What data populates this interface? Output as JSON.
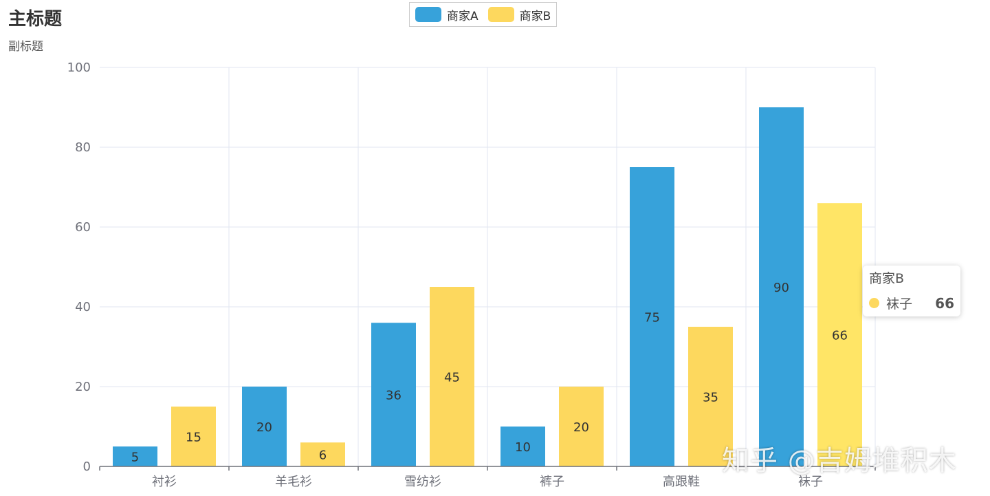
{
  "chart_data": {
    "type": "bar",
    "title": "主标题",
    "subtitle": "副标题",
    "categories": [
      "衬衫",
      "羊毛衫",
      "雪纺衫",
      "裤子",
      "高跟鞋",
      "袜子"
    ],
    "series": [
      {
        "name": "商家A",
        "values": [
          5,
          20,
          36,
          10,
          75,
          90
        ],
        "color": "#37a2da"
      },
      {
        "name": "商家B",
        "values": [
          15,
          6,
          45,
          20,
          35,
          66
        ],
        "color": "#fdd85e"
      }
    ],
    "ylim": [
      0,
      100
    ],
    "yticks": [
      0,
      20,
      40,
      60,
      80,
      100
    ],
    "grid": true,
    "legend_position": "top-center",
    "data_labels": "inside"
  },
  "tooltip": {
    "series": "商家B",
    "category": "袜子",
    "value": "66",
    "dot_color": "#fdd85e"
  },
  "highlight": {
    "series": 1,
    "index": 5,
    "color": "#ffe566"
  },
  "watermark": "知乎 @吉姆堆积木"
}
